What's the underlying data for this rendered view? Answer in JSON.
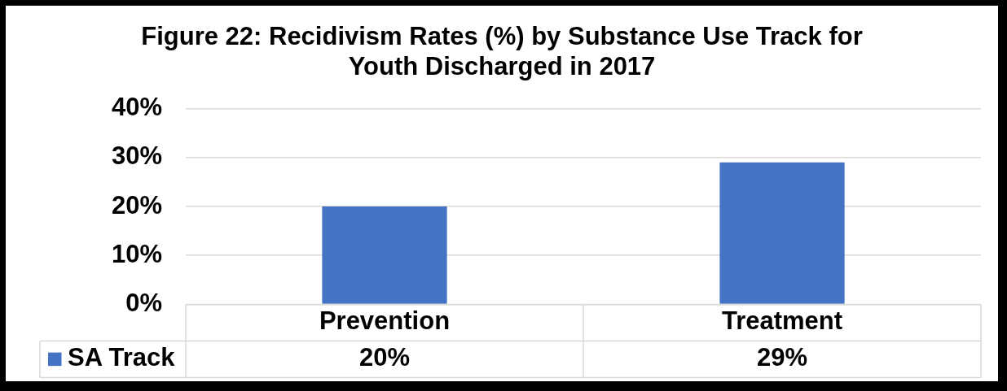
{
  "chart_data": {
    "type": "bar",
    "title": "Figure 22: Recidivism Rates (%) by Substance Use Track for Youth Discharged in 2017",
    "categories": [
      "Prevention",
      "Treatment"
    ],
    "series": [
      {
        "name": "SA Track",
        "color": "#4472c4",
        "values": [
          20,
          29
        ],
        "value_labels": [
          "20%",
          "29%"
        ]
      }
    ],
    "ylim": [
      0,
      40
    ],
    "yticks": [
      {
        "value": 0,
        "label": "0%"
      },
      {
        "value": 10,
        "label": "10%"
      },
      {
        "value": 20,
        "label": "20%"
      },
      {
        "value": 30,
        "label": "30%"
      },
      {
        "value": 40,
        "label": "40%"
      }
    ],
    "grid": "y",
    "legend": "bottom left"
  }
}
